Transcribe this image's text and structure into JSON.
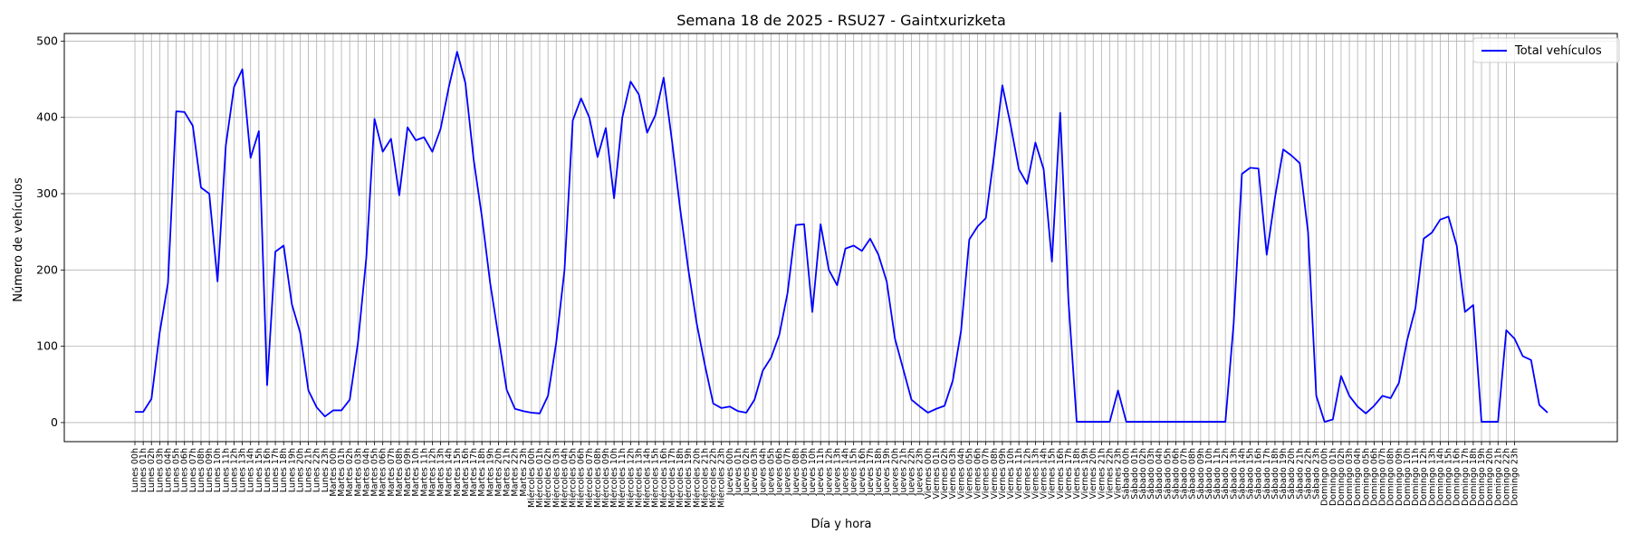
{
  "chart_data": {
    "type": "line",
    "title": "Semana 18 de 2025 - RSU27 - Gaintxurizketa",
    "xlabel": "Día y hora",
    "ylabel": "Número de vehículos",
    "ylim": [
      -25,
      510
    ],
    "yticks": [
      0,
      100,
      200,
      300,
      400,
      500
    ],
    "grid": true,
    "legend_position": "top-right",
    "days": [
      "Lunes",
      "Martes",
      "Miércoles",
      "Jueves",
      "Viernes",
      "Sábado",
      "Domingo"
    ],
    "series": [
      {
        "name": "Total vehículos",
        "color": "#0000ff",
        "values": [
          14,
          14,
          31,
          118,
          183,
          408,
          407,
          389,
          308,
          300,
          185,
          363,
          440,
          463,
          347,
          382,
          49,
          224,
          232,
          155,
          118,
          42,
          20,
          8,
          16,
          16,
          30,
          105,
          215,
          398,
          355,
          372,
          298,
          387,
          370,
          374,
          355,
          385,
          440,
          486,
          445,
          345,
          270,
          183,
          113,
          43,
          18,
          15,
          13,
          12,
          35,
          105,
          200,
          396,
          425,
          400,
          348,
          386,
          294,
          400,
          447,
          430,
          380,
          403,
          452,
          370,
          280,
          200,
          130,
          75,
          25,
          19,
          21,
          15,
          13,
          30,
          68,
          85,
          115,
          170,
          259,
          260,
          145,
          260,
          200,
          180,
          228,
          232,
          225,
          241,
          220,
          185,
          110,
          70,
          30,
          21,
          13,
          18,
          22,
          55,
          120,
          240,
          257,
          268,
          350,
          442,
          390,
          332,
          313,
          367,
          332,
          211,
          406,
          160,
          1,
          1,
          1,
          1,
          1,
          42,
          1,
          1,
          1,
          1,
          1,
          1,
          1,
          1,
          1,
          1,
          1,
          1,
          1,
          130,
          326,
          334,
          333,
          220,
          295,
          358,
          350,
          340,
          250,
          35,
          1,
          4,
          61,
          35,
          21,
          12,
          22,
          35,
          32,
          52,
          108,
          150,
          241,
          249,
          266,
          270,
          232,
          145,
          154,
          1,
          1,
          1,
          121,
          110,
          87,
          82,
          23,
          13
        ]
      }
    ]
  }
}
